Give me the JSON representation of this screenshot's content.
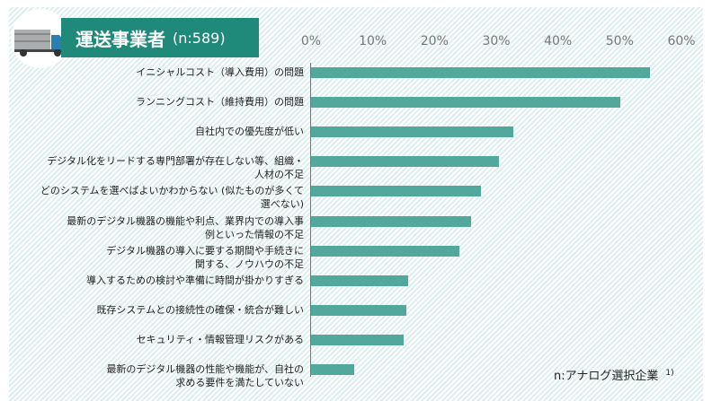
{
  "header": {
    "title": "運送事業者",
    "sample": "(n:589)",
    "icon": "truck-icon",
    "color": "#1f8a7a"
  },
  "chart_data": {
    "type": "bar",
    "orientation": "horizontal",
    "xlim": [
      0,
      60
    ],
    "ticks": [
      "0%",
      "10%",
      "20%",
      "30%",
      "40%",
      "50%",
      "60%"
    ],
    "bar_color": "#52a89c",
    "categories": [
      [
        "イニシャルコスト（導入費用）の問題"
      ],
      [
        "ランニングコスト（維持費用）の問題"
      ],
      [
        "自社内での優先度が低い"
      ],
      [
        "デジタル化をリードする専門部署が存在しない等、組織・",
        "人材の不足"
      ],
      [
        "どのシステムを選べばよいかわからない (似たものが多くて",
        "選べない)"
      ],
      [
        "最新のデジタル機器の機能や利点、業界内での導入事",
        "例といった情報の不足"
      ],
      [
        "デジタル機器の導入に要する期間や手続きに",
        "関する、ノウハウの不足"
      ],
      [
        "導入するための検討や準備に時間が掛かりすぎる"
      ],
      [
        "既存システムとの接続性の確保・統合が難しい"
      ],
      [
        "セキュリティ・情報管理リスクがある"
      ],
      [
        "最新のデジタル機器の性能や機能が、自社の",
        "求める要件を満たしていない"
      ]
    ],
    "values": [
      54.9,
      50.1,
      32.7,
      30.5,
      27.5,
      25.9,
      24.0,
      15.8,
      15.4,
      15.0,
      7.0
    ]
  },
  "footnote": {
    "text": "n:アナログ選択企業",
    "ref": "1)"
  }
}
